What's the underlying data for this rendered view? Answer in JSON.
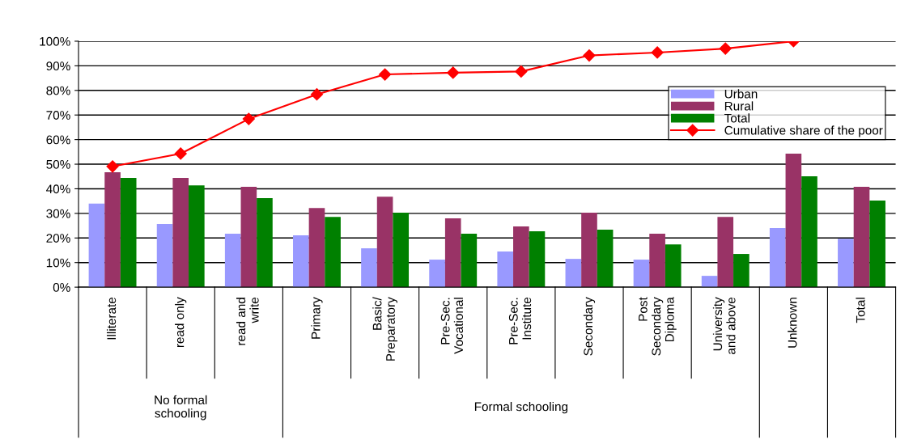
{
  "chart_data": {
    "type": "bar",
    "categories": [
      "Illiterate",
      "read only",
      "read and\nwrite",
      "Primary",
      "Basic/\nPreparatory",
      "Pre-Sec.\nVocational",
      "Pre-Sec.\nInstitute",
      "Secondary",
      "Post\nSecondary\nDiploma",
      "University\nand above",
      "Unknown",
      "Total"
    ],
    "series": [
      {
        "name": "Urban",
        "color": "#9999ff",
        "values": [
          34,
          25.7,
          21.7,
          21.1,
          15.8,
          11.2,
          14.5,
          11.5,
          11.2,
          4.6,
          24.0,
          19.7
        ]
      },
      {
        "name": "Rural",
        "color": "#993366",
        "values": [
          46.7,
          44.4,
          40.8,
          32.2,
          36.8,
          28.0,
          24.7,
          30.3,
          21.7,
          28.6,
          54.3,
          40.8
        ]
      },
      {
        "name": "Total",
        "color": "#008000",
        "values": [
          44.4,
          41.4,
          36.2,
          28.6,
          30.3,
          21.7,
          22.7,
          23.4,
          17.4,
          13.5,
          45.1,
          35.2
        ]
      },
      {
        "name": "Cumulative share of the poor",
        "type": "line",
        "color": "#ff0000",
        "marker": "diamond",
        "values": [
          49.1,
          54.3,
          68.4,
          78.4,
          86.5,
          87.2,
          87.7,
          94.2,
          95.4,
          97.0,
          100,
          null
        ]
      }
    ],
    "ylim": [
      0,
      100
    ],
    "yticks": [
      {
        "value": 0,
        "label": "0%"
      },
      {
        "value": 10,
        "label": "10%"
      },
      {
        "value": 20,
        "label": "20%"
      },
      {
        "value": 30,
        "label": "30%"
      },
      {
        "value": 40,
        "label": "40%"
      },
      {
        "value": 50,
        "label": "50%"
      },
      {
        "value": 60,
        "label": "60%"
      },
      {
        "value": 70,
        "label": "70%"
      },
      {
        "value": 80,
        "label": "80%"
      },
      {
        "value": 90,
        "label": "90%"
      },
      {
        "value": 100,
        "label": "100%"
      }
    ],
    "grid": "y",
    "legend": "top right",
    "annotations": [
      "No formal\nschooling",
      "Formal schooling"
    ]
  }
}
